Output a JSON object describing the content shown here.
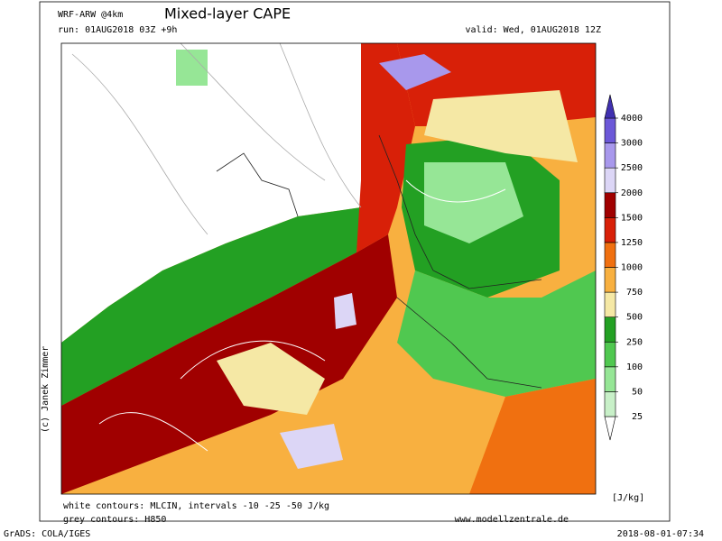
{
  "header": {
    "model": "WRF-ARW @4km",
    "title": "Mixed-layer CAPE",
    "run": "run: 01AUG2018 03Z +9h",
    "valid": "valid: Wed, 01AUG2018 12Z"
  },
  "credit": "(c) Janek Zimmer",
  "colorbar": {
    "levels": [
      25,
      50,
      100,
      250,
      500,
      750,
      1000,
      1250,
      1500,
      2000,
      2500,
      3000,
      4000
    ],
    "colors": [
      "#ffffff",
      "#c8f0c8",
      "#96e696",
      "#50c850",
      "#23a023",
      "#f5e8a5",
      "#f8b040",
      "#f07010",
      "#d82008",
      "#a00000",
      "#dcd6f6",
      "#a898ec",
      "#6c58d8",
      "#4030b0"
    ],
    "unit": "[J/kg]"
  },
  "footer": {
    "white_contours": "white contours: MLCIN, intervals -10 -25 -50 J/kg",
    "grey_contours": "grey contours: H850",
    "website": "www.modellzentrale.de"
  },
  "software": "GrADS: COLA/IGES",
  "timestamp": "2018-08-01-07:34"
}
